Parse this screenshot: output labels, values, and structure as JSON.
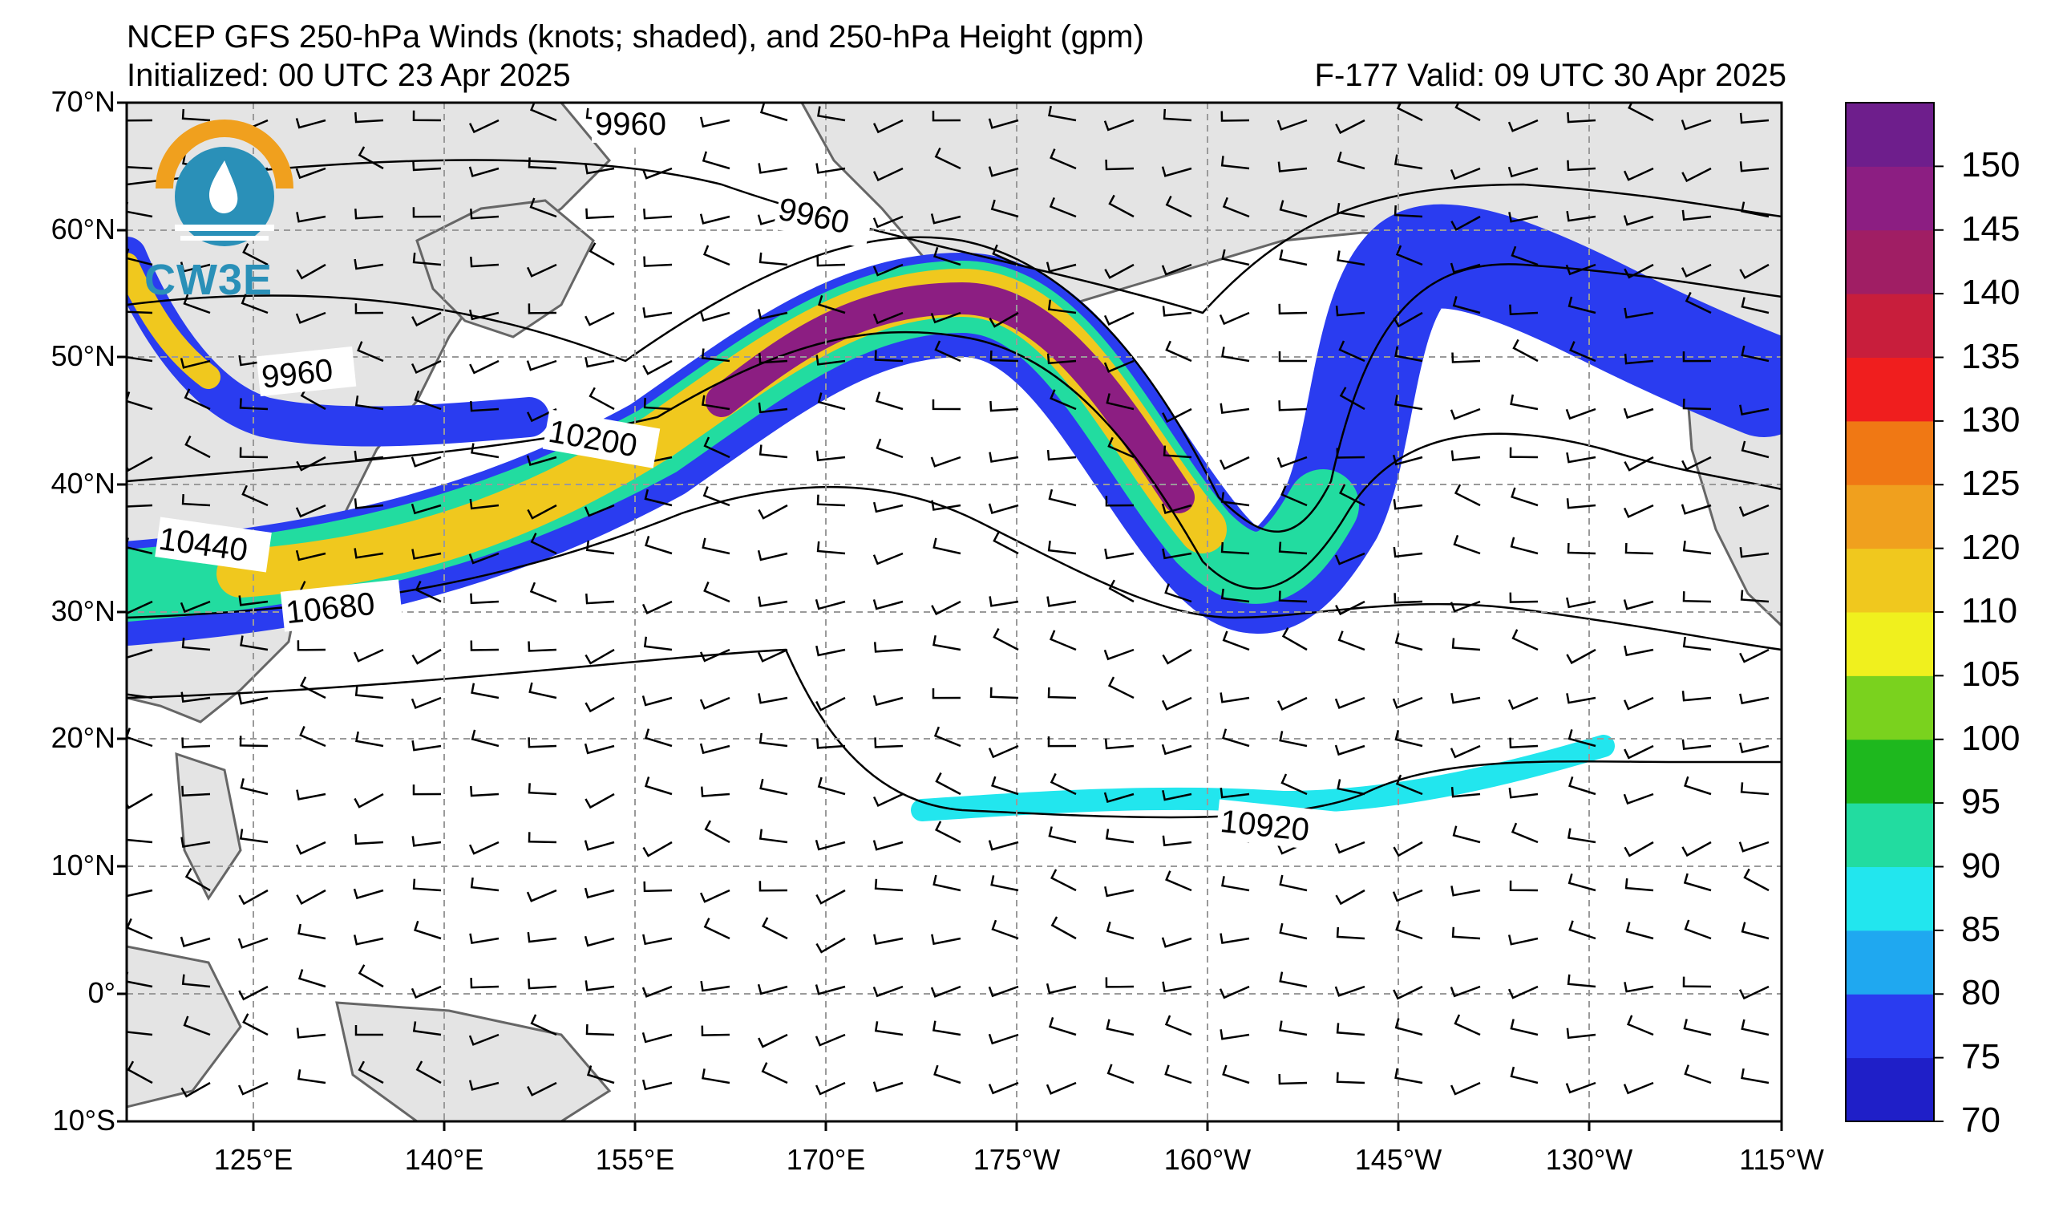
{
  "title_line1": "NCEP GFS 250-hPa Winds (knots; shaded), and 250-hPa Height (gpm)",
  "title_init": "Initialized: 00 UTC 23 Apr 2025",
  "title_valid": "F-177  Valid: 09 UTC 30 Apr 2025",
  "logo_text": "CW3E",
  "lat_labels": [
    "70°N",
    "60°N",
    "50°N",
    "40°N",
    "30°N",
    "20°N",
    "10°N",
    "0°",
    "10°S"
  ],
  "lon_labels": [
    "125°E",
    "140°E",
    "155°E",
    "170°E",
    "175°W",
    "160°W",
    "145°W",
    "130°W",
    "115°W"
  ],
  "contour_labels": [
    "9960",
    "9960",
    "9960",
    "10200",
    "10440",
    "10680",
    "10920"
  ],
  "colorbar": {
    "ticks": [
      "70",
      "75",
      "80",
      "85",
      "90",
      "95",
      "100",
      "105",
      "110",
      "120",
      "125",
      "130",
      "135",
      "140",
      "145",
      "150"
    ],
    "colors": [
      "#1f1fc8",
      "#2a3cf0",
      "#1fa8f0",
      "#22e6ee",
      "#22dca0",
      "#1eb81e",
      "#7ad21e",
      "#f0f01e",
      "#f0c81e",
      "#f0a01e",
      "#f07814",
      "#f01e1e",
      "#c81e3c",
      "#a01e64",
      "#8c1e82",
      "#6e1e8c"
    ]
  },
  "colors": {
    "land": "#e4e4e4",
    "coast": "#666666",
    "grid": "#9a9a9a"
  }
}
